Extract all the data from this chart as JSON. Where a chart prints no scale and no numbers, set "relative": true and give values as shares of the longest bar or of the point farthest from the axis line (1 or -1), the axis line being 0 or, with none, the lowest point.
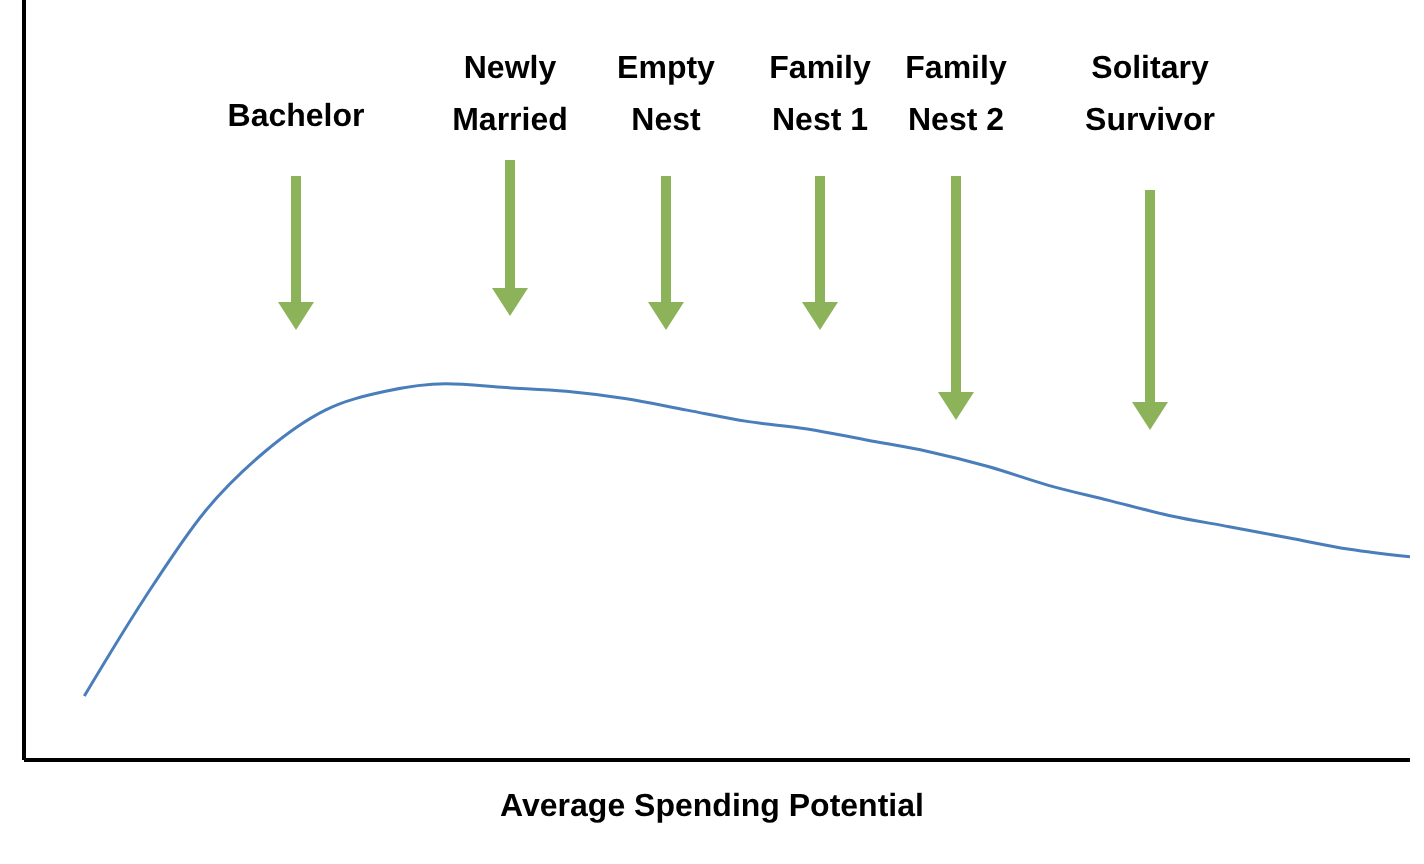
{
  "chart_data": {
    "type": "line",
    "relative": true,
    "xlabel": "Average Spending Potential",
    "categories": [
      null,
      null,
      null,
      null,
      null,
      null,
      null,
      null,
      null,
      null,
      null,
      null,
      null,
      null,
      null,
      null,
      null,
      null,
      null,
      null,
      null,
      null,
      null,
      null
    ],
    "series": [
      {
        "color": "#4a7ebb",
        "values": [
          null,
          0.17,
          0.43,
          0.66,
          0.82,
          0.93,
          0.98,
          1,
          0.99,
          0.98,
          0.96,
          0.93,
          0.9,
          0.88,
          0.85,
          0.82,
          0.78,
          0.73,
          0.69,
          0.65,
          0.62,
          0.59,
          0.56,
          0.54
        ]
      }
    ],
    "annotations": [
      "Bachelor",
      "Newly Married",
      "Empty Nest",
      "Family Nest 1",
      "Family Nest 2",
      "Solitary Survivor"
    ]
  }
}
